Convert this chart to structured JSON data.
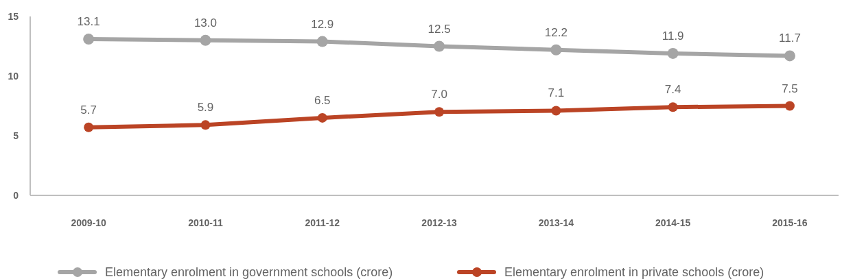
{
  "chart_data": {
    "type": "line",
    "categories": [
      "2009-10",
      "2010-11",
      "2011-12",
      "2012-13",
      "2013-14",
      "2014-15",
      "2015-16"
    ],
    "series": [
      {
        "name": "Elementary enrolment in government schools (crore)",
        "color": "#a5a5a5",
        "values": [
          13.1,
          13.0,
          12.9,
          12.5,
          12.2,
          11.9,
          11.7
        ],
        "value_labels": [
          "13.1",
          "13.0",
          "12.9",
          "12.5",
          "12.2",
          "11.9",
          "11.7"
        ]
      },
      {
        "name": "Elementary enrolment in private schools (crore)",
        "color": "#bb4425",
        "values": [
          5.7,
          5.9,
          6.5,
          7.0,
          7.1,
          7.4,
          7.5
        ],
        "value_labels": [
          "5.7",
          "5.9",
          "6.5",
          "7.0",
          "7.1",
          "7.4",
          "7.5"
        ]
      }
    ],
    "ylim": [
      0,
      15
    ],
    "yticks": [
      0,
      5,
      10,
      15
    ],
    "legend": "bottom",
    "marker": "circle"
  }
}
